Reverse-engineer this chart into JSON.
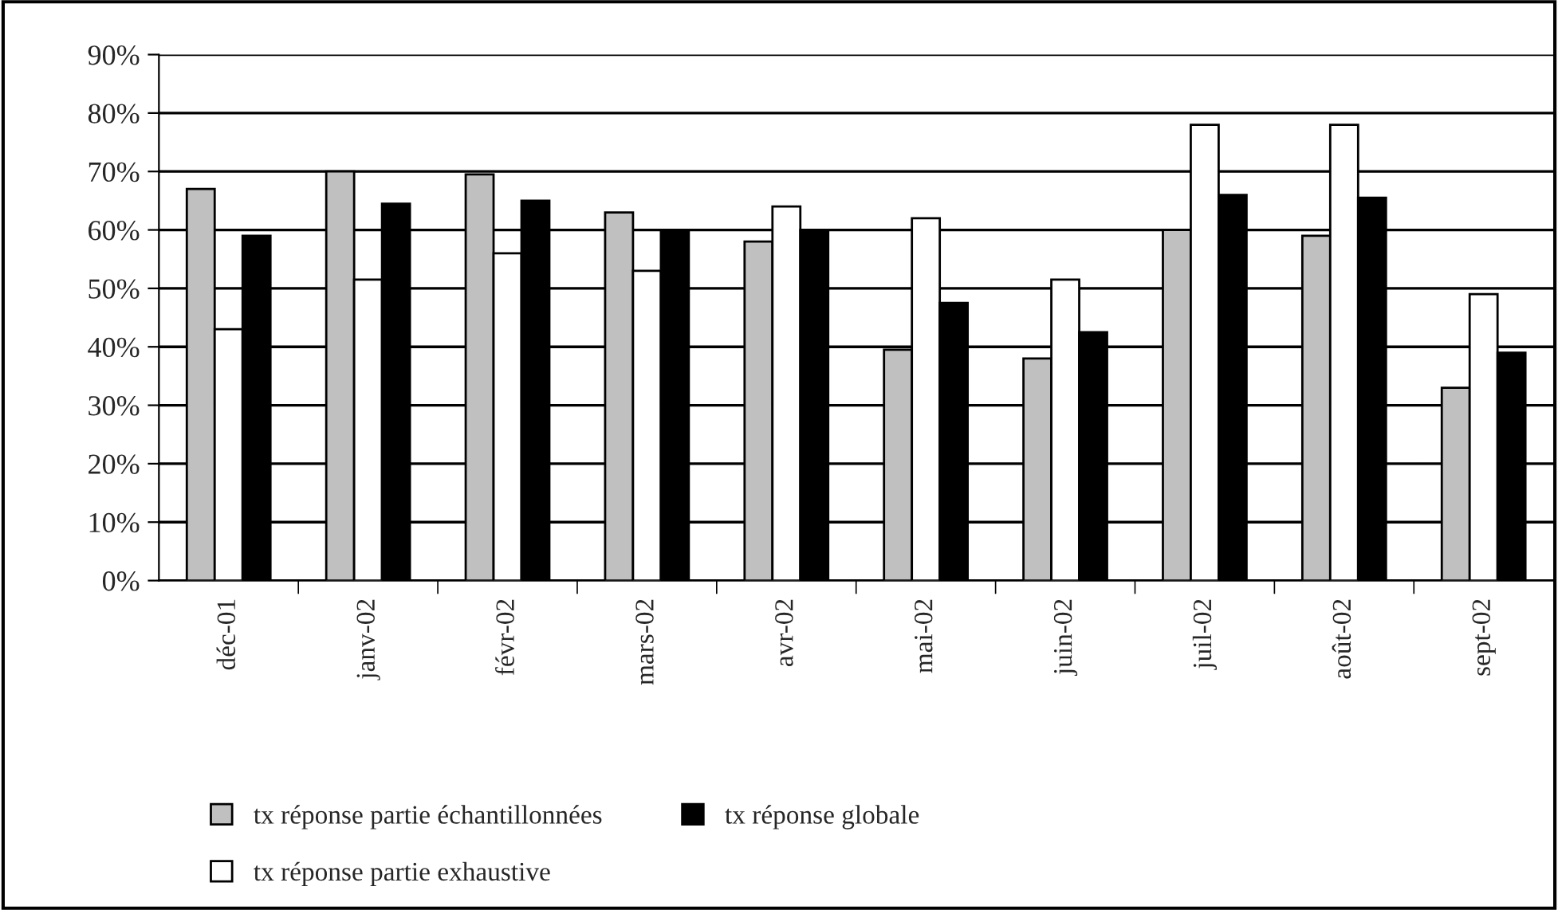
{
  "chart_data": {
    "type": "bar",
    "categories": [
      "déc-01",
      "janv-02",
      "févr-02",
      "mars-02",
      "avr-02",
      "mai-02",
      "juin-02",
      "juil-02",
      "août-02",
      "sept-02"
    ],
    "series": [
      {
        "name": "tx réponse partie échantillonnées",
        "color": "#c0c0c0",
        "values": [
          67,
          70,
          69.5,
          63,
          58,
          39.5,
          38,
          60,
          59,
          33
        ]
      },
      {
        "name": "tx réponse partie exhaustive",
        "color": "#ffffff",
        "values": [
          43,
          51.5,
          56,
          53,
          64,
          62,
          51.5,
          78,
          78,
          49
        ]
      },
      {
        "name": "tx réponse globale",
        "color": "#000000",
        "values": [
          59,
          64.5,
          65,
          60,
          60,
          47.5,
          42.5,
          66,
          65.5,
          39
        ]
      }
    ],
    "ylim": [
      0,
      90
    ],
    "yticks": [
      {
        "value": 0,
        "label": "0%"
      },
      {
        "value": 10,
        "label": "10%"
      },
      {
        "value": 20,
        "label": "20%"
      },
      {
        "value": 30,
        "label": "30%"
      },
      {
        "value": 40,
        "label": "40%"
      },
      {
        "value": 50,
        "label": "50%"
      },
      {
        "value": 60,
        "label": "60%"
      },
      {
        "value": 70,
        "label": "70%"
      },
      {
        "value": 80,
        "label": "80%"
      },
      {
        "value": 90,
        "label": "90%"
      }
    ],
    "grid": "y",
    "legend": "bottom"
  }
}
